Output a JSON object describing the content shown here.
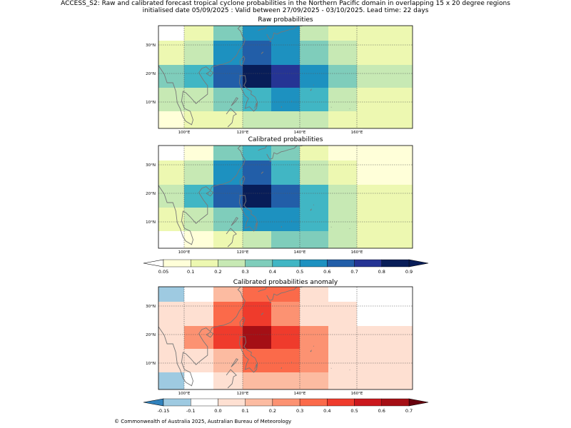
{
  "header": {
    "line1": "ACCESS_S2: Raw and calibrated forecast tropical cyclone probabilities in the Northern Pacific domain in overlapping 15 x 20 degree regions",
    "line2": "initialised date 05/09/2025 :  Valid between 27/09/2025 - 03/10/2025. Lead time: 22 days"
  },
  "footer": {
    "copyright": "© Commonwealth of Australia 2025, Australian Bureau of Meteorology"
  },
  "chart_data": [
    {
      "type": "heatmap",
      "title": "Raw probabilities",
      "x_ticks": [
        "100°E",
        "120°E",
        "140°E",
        "160°E"
      ],
      "y_ticks": [
        "30°N",
        "20°N",
        "10°N"
      ],
      "x_range_lon": [
        92,
        180
      ],
      "y_range_lat": [
        0,
        36
      ],
      "rows_top_to_bottom": [
        [
          0.0,
          0.15,
          0.35,
          0.5,
          0.5,
          0.25,
          0.15,
          0.1
        ],
        [
          0.1,
          0.25,
          0.55,
          0.65,
          0.55,
          0.35,
          0.25,
          0.1
        ],
        [
          0.35,
          0.45,
          0.65,
          0.9,
          0.75,
          0.55,
          0.35,
          0.25
        ],
        [
          0.2,
          0.25,
          0.35,
          0.45,
          0.55,
          0.45,
          0.25,
          0.15
        ],
        [
          0.05,
          0.1,
          0.15,
          0.25,
          0.25,
          0.2,
          0.15,
          0.15
        ]
      ]
    },
    {
      "type": "heatmap",
      "title": "Calibrated probabilities",
      "x_ticks": [
        "100°E",
        "120°E",
        "140°E",
        "160°E"
      ],
      "y_ticks": [
        "30°N",
        "20°N",
        "10°N"
      ],
      "x_range_lon": [
        92,
        180
      ],
      "y_range_lat": [
        0,
        36
      ],
      "rows_top_to_bottom": [
        [
          0.0,
          0.05,
          0.35,
          0.45,
          0.35,
          0.15,
          0.05,
          0.05
        ],
        [
          0.1,
          0.25,
          0.55,
          0.65,
          0.45,
          0.25,
          0.15,
          0.05
        ],
        [
          0.25,
          0.45,
          0.65,
          0.9,
          0.65,
          0.45,
          0.25,
          0.15
        ],
        [
          0.15,
          0.25,
          0.35,
          0.55,
          0.55,
          0.45,
          0.25,
          0.15
        ],
        [
          0.0,
          0.05,
          0.15,
          0.25,
          0.35,
          0.35,
          0.25,
          0.15
        ]
      ]
    },
    {
      "type": "heatmap",
      "title": "Calibrated probabilities anomaly",
      "x_ticks": [
        "100°E",
        "120°E",
        "140°E",
        "160°E"
      ],
      "y_ticks": [
        "30°N",
        "20°N",
        "10°N"
      ],
      "x_range_lon": [
        92,
        180
      ],
      "y_range_lat": [
        0,
        36
      ],
      "rows_top_to_bottom": [
        [
          -0.15,
          -0.1,
          0.15,
          0.3,
          0.3,
          0.0,
          -0.1,
          -0.1
        ],
        [
          0.0,
          0.05,
          0.35,
          0.45,
          0.25,
          0.05,
          0.0,
          -0.1
        ],
        [
          0.05,
          0.25,
          0.45,
          0.65,
          0.45,
          0.25,
          0.05,
          0.0
        ],
        [
          0.0,
          0.05,
          0.15,
          0.35,
          0.35,
          0.25,
          0.05,
          0.0
        ],
        [
          -0.15,
          -0.1,
          0.0,
          0.15,
          0.15,
          0.15,
          0.05,
          0.0
        ]
      ]
    }
  ],
  "colorbars": {
    "probability": {
      "labels": [
        "0.05",
        "0.1",
        "0.2",
        "0.3",
        "0.4",
        "0.5",
        "0.6",
        "0.7",
        "0.8",
        "0.9"
      ],
      "colors": [
        "#ffffd9",
        "#edf8b1",
        "#c7e9b4",
        "#7fcdbb",
        "#41b6c4",
        "#1d91c0",
        "#225ea8",
        "#253494",
        "#081d58"
      ],
      "under": "#ffffff",
      "over": "#081d58"
    },
    "anomaly": {
      "labels": [
        "-0.15",
        "-0.1",
        "0.0",
        "0.1",
        "0.2",
        "0.3",
        "0.4",
        "0.5",
        "0.6",
        "0.7"
      ],
      "colors": [
        "#9ecae1",
        "#ffffff",
        "#fee0d2",
        "#fcbba1",
        "#fc9272",
        "#fb6a4a",
        "#ef3b2c",
        "#cb181d",
        "#a50f15"
      ],
      "under": "#3182bd",
      "over": "#67000d"
    }
  }
}
